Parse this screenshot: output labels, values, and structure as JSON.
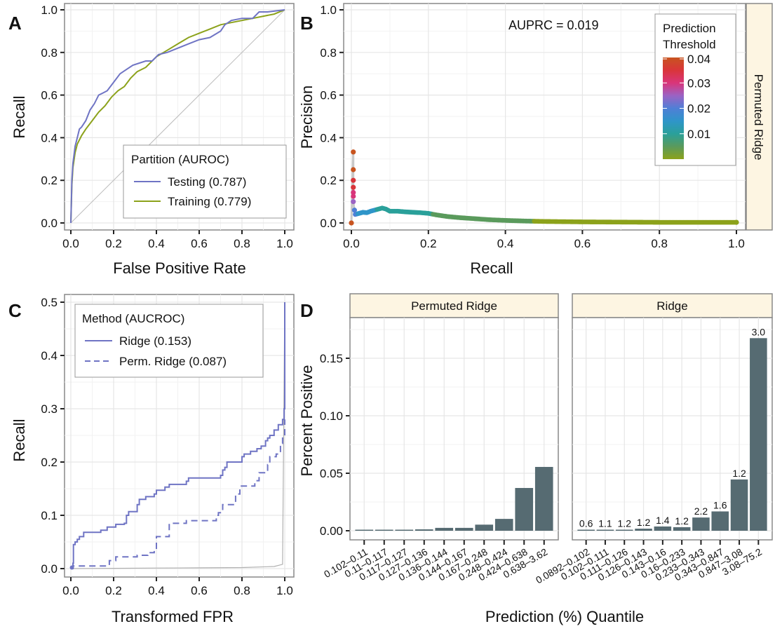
{
  "chart_data": [
    {
      "id": "A",
      "type": "line",
      "panel_label": "A",
      "xlabel": "False Positive Rate",
      "ylabel": "Recall",
      "xlim": [
        0,
        1
      ],
      "ylim": [
        0,
        1
      ],
      "xticks": [
        "0.0",
        "0.2",
        "0.4",
        "0.6",
        "0.8",
        "1.0"
      ],
      "yticks": [
        "0.0",
        "0.2",
        "0.4",
        "0.6",
        "0.8",
        "1.0"
      ],
      "grid": true,
      "reference_line": "diagonal",
      "legend": {
        "title": "Partition (AUROC)",
        "position": "bottom-right"
      },
      "series": [
        {
          "name": "Testing (0.787)",
          "color": "#6f74c4",
          "x": [
            0,
            0.005,
            0.01,
            0.02,
            0.03,
            0.04,
            0.05,
            0.07,
            0.09,
            0.11,
            0.13,
            0.15,
            0.17,
            0.2,
            0.23,
            0.26,
            0.29,
            0.32,
            0.35,
            0.38,
            0.41,
            0.45,
            0.5,
            0.55,
            0.6,
            0.65,
            0.7,
            0.72,
            0.75,
            0.8,
            0.85,
            0.88,
            0.92,
            0.96,
            1.0
          ],
          "y": [
            0,
            0.2,
            0.28,
            0.36,
            0.4,
            0.44,
            0.45,
            0.48,
            0.53,
            0.56,
            0.6,
            0.61,
            0.62,
            0.66,
            0.7,
            0.72,
            0.74,
            0.75,
            0.76,
            0.76,
            0.79,
            0.8,
            0.82,
            0.84,
            0.86,
            0.87,
            0.9,
            0.93,
            0.95,
            0.96,
            0.96,
            0.99,
            0.99,
            0.995,
            1.0
          ]
        },
        {
          "name": "Training (0.779)",
          "color": "#8ca21b",
          "x": [
            0,
            0.005,
            0.01,
            0.02,
            0.03,
            0.05,
            0.07,
            0.1,
            0.13,
            0.16,
            0.19,
            0.22,
            0.25,
            0.28,
            0.31,
            0.35,
            0.4,
            0.45,
            0.5,
            0.55,
            0.6,
            0.65,
            0.7,
            0.75,
            0.8,
            0.85,
            0.9,
            0.95,
            1.0
          ],
          "y": [
            0,
            0.18,
            0.26,
            0.33,
            0.37,
            0.41,
            0.44,
            0.48,
            0.52,
            0.55,
            0.59,
            0.62,
            0.64,
            0.68,
            0.71,
            0.73,
            0.78,
            0.81,
            0.84,
            0.87,
            0.89,
            0.91,
            0.93,
            0.94,
            0.95,
            0.96,
            0.97,
            0.98,
            1.0
          ]
        }
      ]
    },
    {
      "id": "B",
      "type": "scatter",
      "panel_label": "B",
      "xlabel": "Recall",
      "ylabel": "Precision",
      "xlim": [
        0,
        1
      ],
      "ylim": [
        0,
        1
      ],
      "xticks": [
        "0.0",
        "0.2",
        "0.4",
        "0.6",
        "0.8",
        "1.0"
      ],
      "yticks": [
        "0.0",
        "0.2",
        "0.4",
        "0.6",
        "0.8",
        "1.0"
      ],
      "grid": true,
      "annotation": "AUPRC = 0.019",
      "facet_strip": "Permuted Ridge",
      "legend": {
        "title_line1": "Prediction",
        "title_line2": "Threshold",
        "position": "top-right",
        "ticks": [
          "0.04",
          "0.03",
          "0.02",
          "0.01"
        ],
        "range": [
          0,
          0.04
        ],
        "colors": [
          "#c8541f",
          "#d9353a",
          "#d9357a",
          "#9b63c4",
          "#4f7fd6",
          "#2f95c9",
          "#2aa09a",
          "#5a9a5c",
          "#8ca21b"
        ]
      },
      "points": {
        "x": [
          0,
          0.005,
          0.005,
          0.005,
          0.005,
          0.005,
          0.005,
          0.005,
          0.008,
          0.01,
          0.02,
          0.03,
          0.04,
          0.05,
          0.06,
          0.07,
          0.08,
          0.09,
          0.1,
          0.12,
          0.14,
          0.16,
          0.18,
          0.2,
          0.22,
          0.25,
          0.28,
          0.32,
          0.36,
          0.4,
          0.45,
          0.5,
          0.6,
          0.7,
          0.8,
          0.9,
          1.0
        ],
        "y": [
          0,
          0.333,
          0.25,
          0.2,
          0.167,
          0.143,
          0.125,
          0.1,
          0.06,
          0.04,
          0.045,
          0.05,
          0.048,
          0.055,
          0.06,
          0.065,
          0.07,
          0.065,
          0.055,
          0.055,
          0.052,
          0.05,
          0.048,
          0.045,
          0.038,
          0.03,
          0.025,
          0.02,
          0.015,
          0.012,
          0.009,
          0.007,
          0.005,
          0.004,
          0.003,
          0.003,
          0.003
        ],
        "threshold": [
          0.04,
          0.04,
          0.038,
          0.036,
          0.033,
          0.031,
          0.029,
          0.027,
          0.02,
          0.018,
          0.017,
          0.016,
          0.015,
          0.014,
          0.013,
          0.012,
          0.012,
          0.011,
          0.011,
          0.01,
          0.009,
          0.009,
          0.008,
          0.008,
          0.007,
          0.006,
          0.005,
          0.004,
          0.004,
          0.003,
          0.003,
          0.002,
          0.001,
          0.001,
          0.0005,
          0.0003,
          0.0001
        ]
      }
    },
    {
      "id": "C",
      "type": "line",
      "panel_label": "C",
      "xlabel": "Transformed FPR",
      "ylabel": "Recall",
      "xlim": [
        0,
        1
      ],
      "ylim": [
        0,
        0.5
      ],
      "xticks": [
        "0.0",
        "0.2",
        "0.4",
        "0.6",
        "0.8",
        "1.0"
      ],
      "yticks": [
        "0.0",
        "0.1",
        "0.2",
        "0.3",
        "0.4",
        "0.5"
      ],
      "grid": true,
      "legend": {
        "title": "Method (AUCROC)",
        "position": "top-left"
      },
      "series": [
        {
          "name": "Ridge (0.153)",
          "color": "#6f74c4",
          "dash": false,
          "x": [
            0,
            0.01,
            0.012,
            0.02,
            0.03,
            0.04,
            0.06,
            0.13,
            0.14,
            0.17,
            0.21,
            0.25,
            0.26,
            0.27,
            0.29,
            0.31,
            0.32,
            0.35,
            0.39,
            0.4,
            0.44,
            0.46,
            0.5,
            0.54,
            0.55,
            0.69,
            0.7,
            0.71,
            0.72,
            0.73,
            0.8,
            0.81,
            0.84,
            0.87,
            0.89,
            0.91,
            0.92,
            0.93,
            0.95,
            0.97,
            0.99,
            0.997,
            1.0
          ],
          "y": [
            0,
            0.01,
            0.045,
            0.05,
            0.055,
            0.06,
            0.068,
            0.068,
            0.072,
            0.078,
            0.083,
            0.085,
            0.1,
            0.107,
            0.107,
            0.12,
            0.13,
            0.135,
            0.14,
            0.147,
            0.153,
            0.158,
            0.158,
            0.164,
            0.17,
            0.17,
            0.175,
            0.185,
            0.19,
            0.2,
            0.21,
            0.215,
            0.22,
            0.225,
            0.23,
            0.24,
            0.245,
            0.25,
            0.26,
            0.27,
            0.28,
            0.3,
            0.5
          ]
        },
        {
          "name": "Perm. Ridge (0.087)",
          "color": "#6f74c4",
          "dash": true,
          "x": [
            0,
            0.01,
            0.17,
            0.18,
            0.21,
            0.31,
            0.36,
            0.39,
            0.4,
            0.45,
            0.46,
            0.54,
            0.68,
            0.69,
            0.71,
            0.77,
            0.79,
            0.84,
            0.86,
            0.88,
            0.9,
            0.92,
            0.93,
            0.96,
            0.98,
            0.99,
            1.0
          ],
          "y": [
            0,
            0.005,
            0.005,
            0.015,
            0.022,
            0.025,
            0.03,
            0.035,
            0.06,
            0.06,
            0.085,
            0.09,
            0.1,
            0.105,
            0.12,
            0.14,
            0.155,
            0.155,
            0.165,
            0.18,
            0.18,
            0.195,
            0.21,
            0.215,
            0.235,
            0.25,
            0.28
          ]
        },
        {
          "name": "reference",
          "color": "#b0b0b0",
          "dash": false,
          "x": [
            0,
            0.2,
            0.4,
            0.6,
            0.8,
            0.95,
            0.99,
            1.0
          ],
          "y": [
            0,
            0.0005,
            0.001,
            0.0015,
            0.002,
            0.004,
            0.008,
            0.5
          ]
        }
      ]
    },
    {
      "id": "D",
      "type": "bar",
      "panel_label": "D",
      "xlabel": "Prediction (%) Quantile",
      "ylabel": "Percent Positive",
      "ylim": [
        -0.007,
        0.185
      ],
      "yticks": [
        "0.00",
        "0.05",
        "0.10",
        "0.15"
      ],
      "ytick_values": [
        0,
        0.05,
        0.1,
        0.15
      ],
      "grid": true,
      "bar_color": "#566b72",
      "facets": [
        {
          "name": "Permuted Ridge",
          "categories": [
            "0.102–0.11",
            "0.11–0.117",
            "0.117–0.127",
            "0.127–0.136",
            "0.136–0.144",
            "0.144–0.167",
            "0.167–0.248",
            "0.248–0.424",
            "0.424–0.638",
            "0.638–3.62"
          ],
          "values": [
            0.0003,
            0.0004,
            0.0006,
            0.0012,
            0.0025,
            0.0025,
            0.0053,
            0.0103,
            0.0372,
            0.0555
          ],
          "labels": [
            "",
            "",
            "",
            "",
            "",
            "",
            "",
            "",
            "",
            ""
          ]
        },
        {
          "name": "Ridge",
          "categories": [
            "0.0892–0.102",
            "0.102–0.111",
            "0.111–0.126",
            "0.126–0.143",
            "0.143–0.16",
            "0.16–0.233",
            "0.233–0.343",
            "0.343–0.847",
            "0.847–3.08",
            "3.08–75.2"
          ],
          "values": [
            0.0003,
            0.0006,
            0.0008,
            0.0018,
            0.0037,
            0.0031,
            0.0115,
            0.0168,
            0.0446,
            0.1675
          ],
          "labels": [
            "0.6",
            "1.1",
            "1.2",
            "1.2",
            "1.4",
            "1.2",
            "2.2",
            "1.6",
            "1.2",
            "3.0"
          ]
        }
      ]
    }
  ]
}
